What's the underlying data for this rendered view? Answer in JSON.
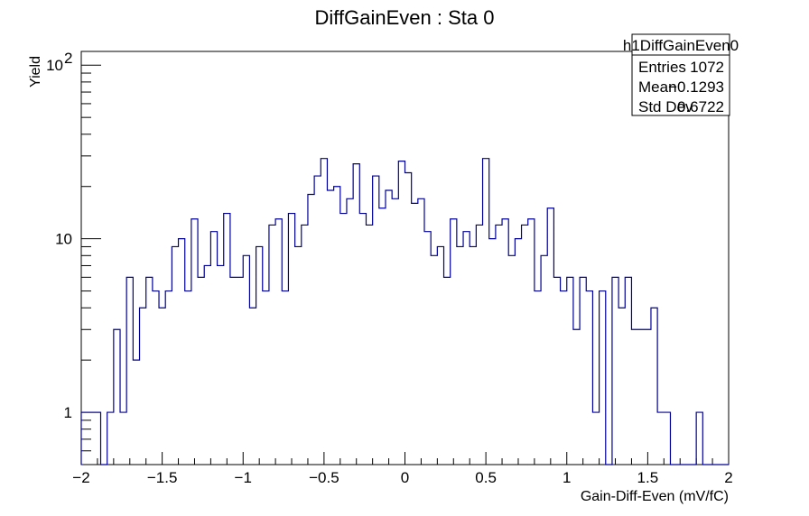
{
  "chart_data": {
    "type": "histogram",
    "title": "DiffGainEven : Sta 0",
    "xlabel": "Gain-Diff-Even (mV/fC)",
    "ylabel": "Yield",
    "xlim": [
      -2,
      2
    ],
    "ylim": [
      0.5,
      120
    ],
    "y_scale": "log",
    "grid": false,
    "legend": "none",
    "line_color": "#000099",
    "x_ticks": [
      {
        "value": -2,
        "label": "−2"
      },
      {
        "value": -1.5,
        "label": "−1.5"
      },
      {
        "value": -1,
        "label": "−1"
      },
      {
        "value": -0.5,
        "label": "−0.5"
      },
      {
        "value": 0,
        "label": "0"
      },
      {
        "value": 0.5,
        "label": "0.5"
      },
      {
        "value": 1,
        "label": "1"
      },
      {
        "value": 1.5,
        "label": "1.5"
      },
      {
        "value": 2,
        "label": "2"
      }
    ],
    "y_ticks": [
      {
        "value": 1,
        "label": "1"
      },
      {
        "value": 10,
        "label": "10"
      },
      {
        "value": 100,
        "label": "10",
        "exponent": "2"
      }
    ],
    "bin_edges_start": -2,
    "bin_width": 0.04,
    "bin_values": [
      1,
      1,
      1,
      0,
      1,
      3,
      1,
      6,
      2,
      4,
      6,
      5,
      4,
      5,
      9,
      10,
      5,
      13,
      6,
      7,
      11,
      7,
      14,
      6,
      6,
      8,
      4,
      9,
      5,
      12,
      13,
      5,
      14,
      9,
      12,
      18,
      23,
      29,
      19,
      20,
      14,
      17,
      27,
      14,
      12,
      23,
      15,
      19,
      17,
      28,
      24,
      16,
      17,
      11,
      8,
      9,
      6,
      13,
      9,
      11,
      9,
      12,
      29,
      10,
      12,
      13,
      8,
      10,
      12,
      13,
      5,
      8,
      15,
      6,
      5,
      6,
      3,
      6,
      5,
      1,
      5,
      0,
      6,
      4,
      6,
      3,
      3,
      3,
      4,
      1,
      1,
      0,
      0,
      0,
      0,
      1,
      0,
      0,
      0,
      0
    ],
    "stats_box": {
      "name": "h1DiffGainEven0",
      "rows": [
        {
          "label": "Entries",
          "value": "1072"
        },
        {
          "label": "Mean",
          "value": "−0.1293"
        },
        {
          "label": "Std Dev",
          "value": "0.6722"
        }
      ]
    }
  }
}
